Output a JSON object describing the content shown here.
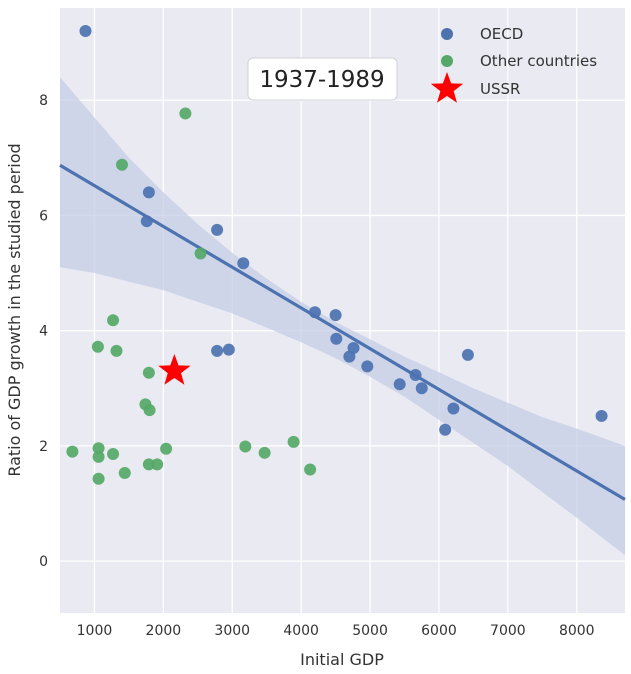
{
  "chart_data": {
    "type": "scatter",
    "annotation": "1937-1989",
    "xlabel": "Initial GDP",
    "ylabel": "Ratio of GDP growth in the studied period",
    "xlim": [
      500,
      8700
    ],
    "ylim": [
      -0.9,
      9.6
    ],
    "x_ticks": [
      1000,
      2000,
      3000,
      4000,
      5000,
      6000,
      7000,
      8000
    ],
    "y_ticks": [
      0,
      2,
      4,
      6,
      8
    ],
    "grid": true,
    "legend_position": "top-right",
    "series": [
      {
        "name": "OECD",
        "color": "#4c72b0",
        "marker": "circle",
        "points": [
          [
            870,
            9.2
          ],
          [
            1790,
            6.4
          ],
          [
            1760,
            5.9
          ],
          [
            2780,
            5.75
          ],
          [
            3160,
            5.17
          ],
          [
            4200,
            4.32
          ],
          [
            4500,
            4.27
          ],
          [
            4510,
            3.86
          ],
          [
            4760,
            3.7
          ],
          [
            4700,
            3.55
          ],
          [
            4960,
            3.38
          ],
          [
            5430,
            3.07
          ],
          [
            5660,
            3.23
          ],
          [
            5750,
            3.0
          ],
          [
            6420,
            3.58
          ],
          [
            6090,
            2.28
          ],
          [
            6210,
            2.65
          ],
          [
            8360,
            2.52
          ],
          [
            2780,
            3.65
          ],
          [
            2950,
            3.67
          ]
        ]
      },
      {
        "name": "Other countries",
        "color": "#55a868",
        "marker": "circle",
        "points": [
          [
            2320,
            7.77
          ],
          [
            1400,
            6.88
          ],
          [
            2540,
            5.34
          ],
          [
            1270,
            4.18
          ],
          [
            1050,
            3.72
          ],
          [
            1320,
            3.65
          ],
          [
            1790,
            3.27
          ],
          [
            1740,
            2.72
          ],
          [
            1800,
            2.62
          ],
          [
            680,
            1.9
          ],
          [
            1060,
            1.96
          ],
          [
            1060,
            1.81
          ],
          [
            1270,
            1.86
          ],
          [
            1060,
            1.43
          ],
          [
            1440,
            1.53
          ],
          [
            1790,
            1.68
          ],
          [
            1910,
            1.68
          ],
          [
            2040,
            1.95
          ],
          [
            3190,
            1.99
          ],
          [
            3470,
            1.88
          ],
          [
            3890,
            2.07
          ],
          [
            4130,
            1.59
          ]
        ]
      },
      {
        "name": "USSR",
        "color": "#ff0000",
        "marker": "star",
        "points": [
          [
            2160,
            3.3
          ]
        ]
      }
    ],
    "regression": {
      "x": [
        500,
        8700
      ],
      "y": [
        6.87,
        1.07
      ],
      "ci_upper": [
        [
          500,
          8.4
        ],
        [
          1000,
          7.7
        ],
        [
          1500,
          7.0
        ],
        [
          2000,
          6.4
        ],
        [
          2500,
          5.85
        ],
        [
          3000,
          5.35
        ],
        [
          3500,
          4.9
        ],
        [
          4000,
          4.5
        ],
        [
          4500,
          4.15
        ],
        [
          5000,
          3.85
        ],
        [
          5500,
          3.55
        ],
        [
          6000,
          3.28
        ],
        [
          6500,
          3.0
        ],
        [
          7000,
          2.75
        ],
        [
          7500,
          2.5
        ],
        [
          8000,
          2.3
        ],
        [
          8700,
          2.0
        ]
      ],
      "ci_lower": [
        [
          500,
          5.1
        ],
        [
          1000,
          5.0
        ],
        [
          1500,
          4.85
        ],
        [
          2000,
          4.7
        ],
        [
          2500,
          4.5
        ],
        [
          3000,
          4.3
        ],
        [
          3500,
          4.05
        ],
        [
          4000,
          3.8
        ],
        [
          4500,
          3.52
        ],
        [
          5000,
          3.2
        ],
        [
          5500,
          2.85
        ],
        [
          6000,
          2.45
        ],
        [
          6500,
          2.05
        ],
        [
          7000,
          1.65
        ],
        [
          7500,
          1.2
        ],
        [
          8000,
          0.75
        ],
        [
          8700,
          0.1
        ]
      ],
      "line_color": "#4c72b0",
      "band_color": "#c5cde6"
    },
    "colors": {
      "background": "#eaeaf2",
      "grid": "#ffffff"
    }
  }
}
